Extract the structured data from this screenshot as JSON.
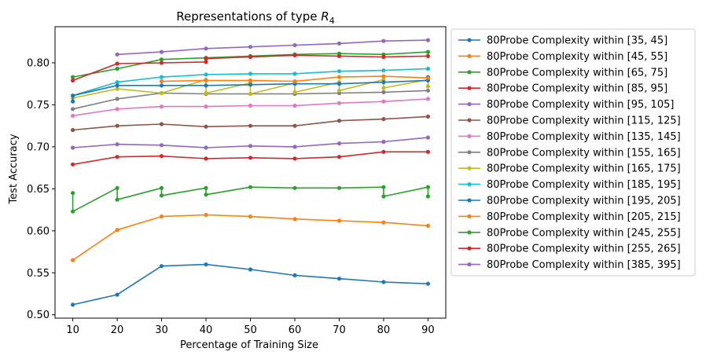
{
  "chart_data": {
    "type": "line",
    "title": "Representations of type ",
    "title_math": "R",
    "title_sub": "4",
    "xlabel": "Percentage of Training Size",
    "ylabel": "Test Accuracy",
    "xlim": [
      6,
      94
    ],
    "ylim": [
      0.496,
      0.843
    ],
    "xticks": [
      10,
      20,
      30,
      40,
      50,
      60,
      70,
      80,
      90
    ],
    "yticks": [
      0.5,
      0.55,
      0.6,
      0.65,
      0.7,
      0.75,
      0.8
    ],
    "ytick_labels": [
      "0.50",
      "0.55",
      "0.60",
      "0.65",
      "0.70",
      "0.75",
      "0.80"
    ],
    "grid": false,
    "legend_position": "outside-right",
    "series": [
      {
        "name": "80Probe Complexity within [35, 45]",
        "color": "#1f77b4",
        "points": [
          [
            10,
            0.512
          ],
          [
            20,
            0.524
          ],
          [
            30,
            0.558
          ],
          [
            40,
            0.56
          ],
          [
            50,
            0.554
          ],
          [
            60,
            0.547
          ],
          [
            70,
            0.543
          ],
          [
            80,
            0.539
          ],
          [
            90,
            0.537
          ]
        ]
      },
      {
        "name": "80Probe Complexity within [45, 55]",
        "color": "#ff7f0e",
        "points": [
          [
            10,
            0.565
          ],
          [
            20,
            0.601
          ],
          [
            30,
            0.617
          ],
          [
            40,
            0.619
          ],
          [
            50,
            0.617
          ],
          [
            60,
            0.614
          ],
          [
            70,
            0.612
          ],
          [
            80,
            0.61
          ],
          [
            90,
            0.606
          ]
        ]
      },
      {
        "name": "80Probe Complexity within [65, 75]",
        "color": "#2ca02c",
        "points": [
          [
            10,
            0.645
          ],
          [
            10,
            0.623
          ],
          [
            20,
            0.651
          ],
          [
            20,
            0.637
          ],
          [
            30,
            0.651
          ],
          [
            30,
            0.642
          ],
          [
            40,
            0.651
          ],
          [
            40,
            0.643
          ],
          [
            50,
            0.652
          ],
          [
            60,
            0.651
          ],
          [
            70,
            0.651
          ],
          [
            80,
            0.652
          ],
          [
            80,
            0.641
          ],
          [
            90,
            0.652
          ],
          [
            90,
            0.641
          ]
        ]
      },
      {
        "name": "80Probe Complexity within [85, 95]",
        "color": "#d62728",
        "points": [
          [
            10,
            0.679
          ],
          [
            20,
            0.688
          ],
          [
            30,
            0.689
          ],
          [
            40,
            0.686
          ],
          [
            50,
            0.687
          ],
          [
            60,
            0.686
          ],
          [
            70,
            0.688
          ],
          [
            80,
            0.694
          ],
          [
            90,
            0.694
          ]
        ]
      },
      {
        "name": "80Probe Complexity within [95, 105]",
        "color": "#9467bd",
        "points": [
          [
            10,
            0.699
          ],
          [
            20,
            0.703
          ],
          [
            30,
            0.702
          ],
          [
            40,
            0.699
          ],
          [
            50,
            0.701
          ],
          [
            60,
            0.7
          ],
          [
            70,
            0.704
          ],
          [
            80,
            0.706
          ],
          [
            90,
            0.711
          ]
        ]
      },
      {
        "name": "80Probe Complexity within [115, 125]",
        "color": "#8c564b",
        "points": [
          [
            10,
            0.72
          ],
          [
            20,
            0.725
          ],
          [
            30,
            0.727
          ],
          [
            40,
            0.724
          ],
          [
            50,
            0.725
          ],
          [
            60,
            0.725
          ],
          [
            70,
            0.731
          ],
          [
            80,
            0.733
          ],
          [
            90,
            0.736
          ]
        ]
      },
      {
        "name": "80Probe Complexity within [135, 145]",
        "color": "#e377c2",
        "points": [
          [
            10,
            0.737
          ],
          [
            20,
            0.745
          ],
          [
            30,
            0.748
          ],
          [
            40,
            0.748
          ],
          [
            50,
            0.749
          ],
          [
            60,
            0.749
          ],
          [
            70,
            0.752
          ],
          [
            80,
            0.754
          ],
          [
            90,
            0.757
          ]
        ]
      },
      {
        "name": "80Probe Complexity within [155, 165]",
        "color": "#7f7f7f",
        "points": [
          [
            10,
            0.745
          ],
          [
            20,
            0.757
          ],
          [
            30,
            0.764
          ],
          [
            40,
            0.763
          ],
          [
            50,
            0.763
          ],
          [
            60,
            0.763
          ],
          [
            70,
            0.764
          ],
          [
            80,
            0.765
          ],
          [
            90,
            0.767
          ]
        ]
      },
      {
        "name": "80Probe Complexity within [165, 175]",
        "color": "#bcbd22",
        "points": [
          [
            10,
            0.758
          ],
          [
            20,
            0.769
          ],
          [
            30,
            0.764
          ],
          [
            40,
            0.78
          ],
          [
            40,
            0.764
          ],
          [
            50,
            0.776
          ],
          [
            50,
            0.763
          ],
          [
            60,
            0.776
          ],
          [
            60,
            0.765
          ],
          [
            70,
            0.777
          ],
          [
            70,
            0.767
          ],
          [
            80,
            0.78
          ],
          [
            80,
            0.77
          ],
          [
            90,
            0.78
          ],
          [
            90,
            0.772
          ]
        ]
      },
      {
        "name": "80Probe Complexity within [185, 195]",
        "color": "#17becf",
        "points": [
          [
            10,
            0.761
          ],
          [
            20,
            0.777
          ],
          [
            30,
            0.783
          ],
          [
            40,
            0.786
          ],
          [
            50,
            0.787
          ],
          [
            60,
            0.787
          ],
          [
            70,
            0.79
          ],
          [
            80,
            0.791
          ],
          [
            90,
            0.793
          ]
        ]
      },
      {
        "name": "80Probe Complexity within [195, 205]",
        "color": "#1f77b4",
        "points": [
          [
            10,
            0.754
          ],
          [
            10,
            0.761
          ],
          [
            20,
            0.773
          ],
          [
            30,
            0.773
          ],
          [
            40,
            0.773
          ],
          [
            50,
            0.774
          ],
          [
            60,
            0.775
          ],
          [
            70,
            0.775
          ],
          [
            80,
            0.777
          ],
          [
            90,
            0.779
          ],
          [
            90,
            0.783
          ]
        ]
      },
      {
        "name": "80Probe Complexity within [205, 215]",
        "color": "#ff7f0e",
        "points": [
          [
            30,
            0.778
          ],
          [
            40,
            0.779
          ],
          [
            50,
            0.779
          ],
          [
            60,
            0.778
          ],
          [
            70,
            0.783
          ],
          [
            80,
            0.784
          ],
          [
            90,
            0.782
          ]
        ]
      },
      {
        "name": "80Probe Complexity within [245, 255]",
        "color": "#2ca02c",
        "points": [
          [
            10,
            0.783
          ],
          [
            20,
            0.793
          ],
          [
            30,
            0.804
          ],
          [
            40,
            0.806
          ],
          [
            50,
            0.808
          ],
          [
            60,
            0.81
          ],
          [
            70,
            0.811
          ],
          [
            80,
            0.81
          ],
          [
            90,
            0.813
          ]
        ]
      },
      {
        "name": "80Probe Complexity within [255, 265]",
        "color": "#d62728",
        "points": [
          [
            10,
            0.779
          ],
          [
            20,
            0.799
          ],
          [
            30,
            0.8
          ],
          [
            40,
            0.801
          ],
          [
            40,
            0.805
          ],
          [
            50,
            0.807
          ],
          [
            60,
            0.809
          ],
          [
            70,
            0.808
          ],
          [
            80,
            0.807
          ],
          [
            90,
            0.808
          ]
        ]
      },
      {
        "name": "80Probe Complexity within [385, 395]",
        "color": "#9467bd",
        "points": [
          [
            20,
            0.81
          ],
          [
            30,
            0.813
          ],
          [
            40,
            0.817
          ],
          [
            50,
            0.819
          ],
          [
            60,
            0.821
          ],
          [
            70,
            0.823
          ],
          [
            80,
            0.826
          ],
          [
            90,
            0.827
          ]
        ]
      }
    ]
  }
}
